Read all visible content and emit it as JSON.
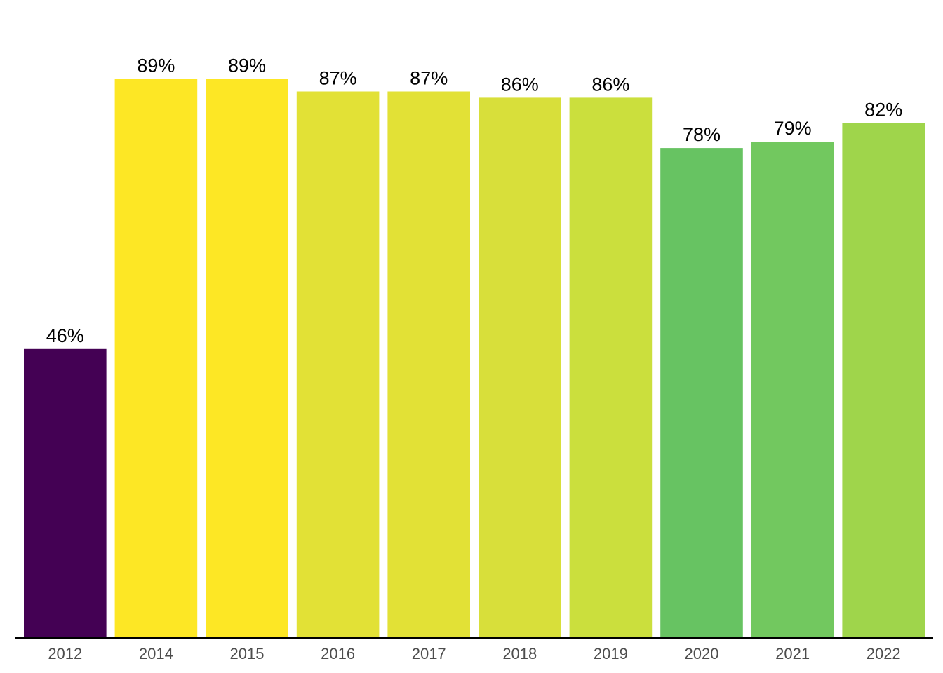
{
  "chart_data": {
    "type": "bar",
    "title": "",
    "xlabel": "",
    "ylabel": "",
    "ylim": [
      0,
      100
    ],
    "grid": false,
    "categories": [
      "2012",
      "2014",
      "2015",
      "2016",
      "2017",
      "2018",
      "2019",
      "2020",
      "2021",
      "2022"
    ],
    "values": [
      46,
      89,
      89,
      87,
      87,
      86,
      86,
      78,
      79,
      82
    ],
    "data_labels": [
      "46%",
      "89%",
      "89%",
      "87%",
      "87%",
      "86%",
      "86%",
      "78%",
      "79%",
      "82%"
    ],
    "colors": [
      "#440154",
      "#fde725",
      "#fde725",
      "#e2e136",
      "#e2e136",
      "#d8df3a",
      "#cbdf3d",
      "#67c362",
      "#72c85f",
      "#9fd54b"
    ],
    "axis_color": "#000000",
    "tick_label_color": "#4d4d4d"
  }
}
